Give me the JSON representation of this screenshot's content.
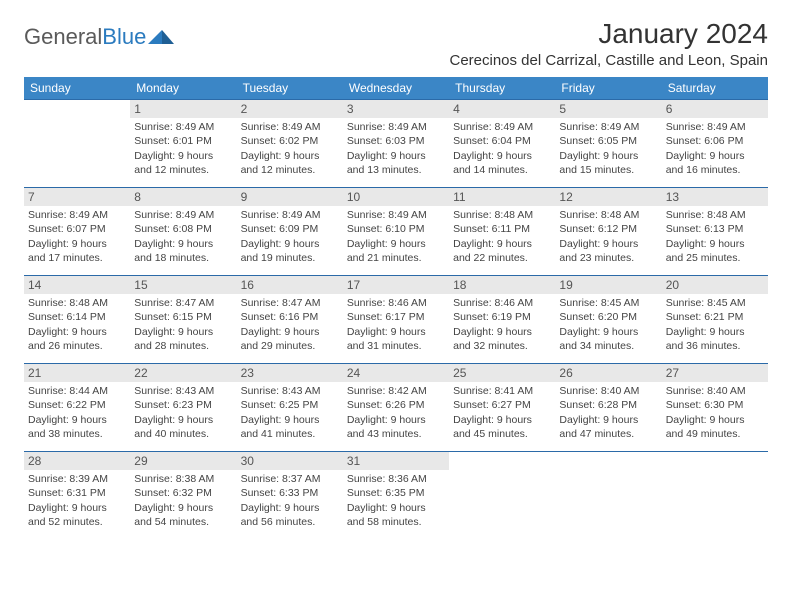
{
  "brand": {
    "part1": "General",
    "part2": "Blue"
  },
  "title": "January 2024",
  "location": "Cerecinos del Carrizal, Castille and Leon, Spain",
  "colors": {
    "header_bg": "#3b86c6",
    "header_text": "#ffffff",
    "rule": "#2b6aa8",
    "daynum_bg": "#e8e8e8",
    "text": "#444444",
    "brand_gray": "#5a5a5a",
    "brand_blue": "#2b7bbf"
  },
  "day_headers": [
    "Sunday",
    "Monday",
    "Tuesday",
    "Wednesday",
    "Thursday",
    "Friday",
    "Saturday"
  ],
  "weeks": [
    [
      {
        "n": "",
        "empty": true
      },
      {
        "n": "1",
        "sr": "Sunrise: 8:49 AM",
        "ss": "Sunset: 6:01 PM",
        "d1": "Daylight: 9 hours",
        "d2": "and 12 minutes."
      },
      {
        "n": "2",
        "sr": "Sunrise: 8:49 AM",
        "ss": "Sunset: 6:02 PM",
        "d1": "Daylight: 9 hours",
        "d2": "and 12 minutes."
      },
      {
        "n": "3",
        "sr": "Sunrise: 8:49 AM",
        "ss": "Sunset: 6:03 PM",
        "d1": "Daylight: 9 hours",
        "d2": "and 13 minutes."
      },
      {
        "n": "4",
        "sr": "Sunrise: 8:49 AM",
        "ss": "Sunset: 6:04 PM",
        "d1": "Daylight: 9 hours",
        "d2": "and 14 minutes."
      },
      {
        "n": "5",
        "sr": "Sunrise: 8:49 AM",
        "ss": "Sunset: 6:05 PM",
        "d1": "Daylight: 9 hours",
        "d2": "and 15 minutes."
      },
      {
        "n": "6",
        "sr": "Sunrise: 8:49 AM",
        "ss": "Sunset: 6:06 PM",
        "d1": "Daylight: 9 hours",
        "d2": "and 16 minutes."
      }
    ],
    [
      {
        "n": "7",
        "sr": "Sunrise: 8:49 AM",
        "ss": "Sunset: 6:07 PM",
        "d1": "Daylight: 9 hours",
        "d2": "and 17 minutes."
      },
      {
        "n": "8",
        "sr": "Sunrise: 8:49 AM",
        "ss": "Sunset: 6:08 PM",
        "d1": "Daylight: 9 hours",
        "d2": "and 18 minutes."
      },
      {
        "n": "9",
        "sr": "Sunrise: 8:49 AM",
        "ss": "Sunset: 6:09 PM",
        "d1": "Daylight: 9 hours",
        "d2": "and 19 minutes."
      },
      {
        "n": "10",
        "sr": "Sunrise: 8:49 AM",
        "ss": "Sunset: 6:10 PM",
        "d1": "Daylight: 9 hours",
        "d2": "and 21 minutes."
      },
      {
        "n": "11",
        "sr": "Sunrise: 8:48 AM",
        "ss": "Sunset: 6:11 PM",
        "d1": "Daylight: 9 hours",
        "d2": "and 22 minutes."
      },
      {
        "n": "12",
        "sr": "Sunrise: 8:48 AM",
        "ss": "Sunset: 6:12 PM",
        "d1": "Daylight: 9 hours",
        "d2": "and 23 minutes."
      },
      {
        "n": "13",
        "sr": "Sunrise: 8:48 AM",
        "ss": "Sunset: 6:13 PM",
        "d1": "Daylight: 9 hours",
        "d2": "and 25 minutes."
      }
    ],
    [
      {
        "n": "14",
        "sr": "Sunrise: 8:48 AM",
        "ss": "Sunset: 6:14 PM",
        "d1": "Daylight: 9 hours",
        "d2": "and 26 minutes."
      },
      {
        "n": "15",
        "sr": "Sunrise: 8:47 AM",
        "ss": "Sunset: 6:15 PM",
        "d1": "Daylight: 9 hours",
        "d2": "and 28 minutes."
      },
      {
        "n": "16",
        "sr": "Sunrise: 8:47 AM",
        "ss": "Sunset: 6:16 PM",
        "d1": "Daylight: 9 hours",
        "d2": "and 29 minutes."
      },
      {
        "n": "17",
        "sr": "Sunrise: 8:46 AM",
        "ss": "Sunset: 6:17 PM",
        "d1": "Daylight: 9 hours",
        "d2": "and 31 minutes."
      },
      {
        "n": "18",
        "sr": "Sunrise: 8:46 AM",
        "ss": "Sunset: 6:19 PM",
        "d1": "Daylight: 9 hours",
        "d2": "and 32 minutes."
      },
      {
        "n": "19",
        "sr": "Sunrise: 8:45 AM",
        "ss": "Sunset: 6:20 PM",
        "d1": "Daylight: 9 hours",
        "d2": "and 34 minutes."
      },
      {
        "n": "20",
        "sr": "Sunrise: 8:45 AM",
        "ss": "Sunset: 6:21 PM",
        "d1": "Daylight: 9 hours",
        "d2": "and 36 minutes."
      }
    ],
    [
      {
        "n": "21",
        "sr": "Sunrise: 8:44 AM",
        "ss": "Sunset: 6:22 PM",
        "d1": "Daylight: 9 hours",
        "d2": "and 38 minutes."
      },
      {
        "n": "22",
        "sr": "Sunrise: 8:43 AM",
        "ss": "Sunset: 6:23 PM",
        "d1": "Daylight: 9 hours",
        "d2": "and 40 minutes."
      },
      {
        "n": "23",
        "sr": "Sunrise: 8:43 AM",
        "ss": "Sunset: 6:25 PM",
        "d1": "Daylight: 9 hours",
        "d2": "and 41 minutes."
      },
      {
        "n": "24",
        "sr": "Sunrise: 8:42 AM",
        "ss": "Sunset: 6:26 PM",
        "d1": "Daylight: 9 hours",
        "d2": "and 43 minutes."
      },
      {
        "n": "25",
        "sr": "Sunrise: 8:41 AM",
        "ss": "Sunset: 6:27 PM",
        "d1": "Daylight: 9 hours",
        "d2": "and 45 minutes."
      },
      {
        "n": "26",
        "sr": "Sunrise: 8:40 AM",
        "ss": "Sunset: 6:28 PM",
        "d1": "Daylight: 9 hours",
        "d2": "and 47 minutes."
      },
      {
        "n": "27",
        "sr": "Sunrise: 8:40 AM",
        "ss": "Sunset: 6:30 PM",
        "d1": "Daylight: 9 hours",
        "d2": "and 49 minutes."
      }
    ],
    [
      {
        "n": "28",
        "sr": "Sunrise: 8:39 AM",
        "ss": "Sunset: 6:31 PM",
        "d1": "Daylight: 9 hours",
        "d2": "and 52 minutes."
      },
      {
        "n": "29",
        "sr": "Sunrise: 8:38 AM",
        "ss": "Sunset: 6:32 PM",
        "d1": "Daylight: 9 hours",
        "d2": "and 54 minutes."
      },
      {
        "n": "30",
        "sr": "Sunrise: 8:37 AM",
        "ss": "Sunset: 6:33 PM",
        "d1": "Daylight: 9 hours",
        "d2": "and 56 minutes."
      },
      {
        "n": "31",
        "sr": "Sunrise: 8:36 AM",
        "ss": "Sunset: 6:35 PM",
        "d1": "Daylight: 9 hours",
        "d2": "and 58 minutes."
      },
      {
        "n": "",
        "empty": true
      },
      {
        "n": "",
        "empty": true
      },
      {
        "n": "",
        "empty": true
      }
    ]
  ]
}
